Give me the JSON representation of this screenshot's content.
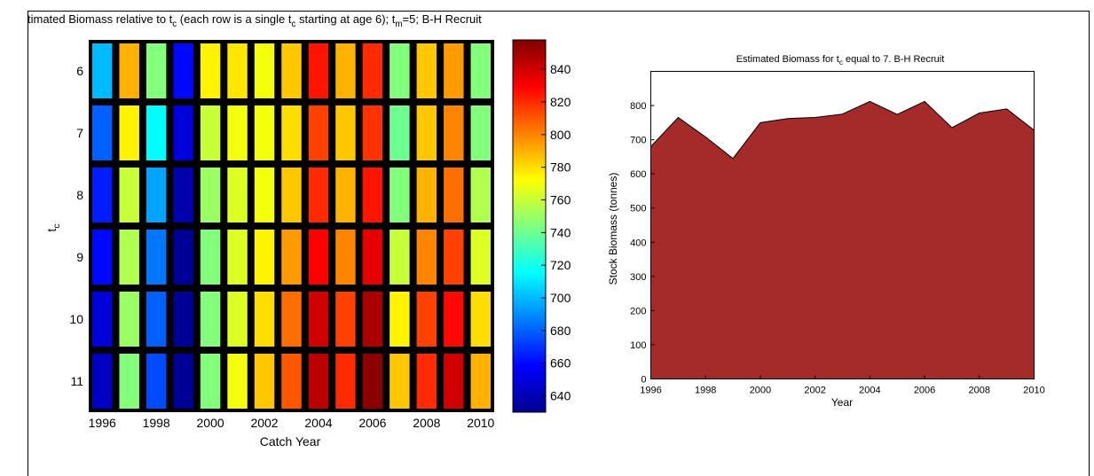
{
  "figure": {
    "title_parts": [
      {
        "t": "timated Biomass relative to t"
      },
      {
        "t": "c",
        "sub": true
      },
      {
        "t": " (each row is a single t"
      },
      {
        "t": "c",
        "sub": true
      },
      {
        "t": " starting at age 6); t"
      },
      {
        "t": "m",
        "sub": true
      },
      {
        "t": "=5; B-H Recruit"
      }
    ]
  },
  "chart_data": [
    {
      "type": "heatmap",
      "xlabel": "Catch Year",
      "ylabel_parts": [
        {
          "t": "t"
        },
        {
          "t": "c",
          "sub": true
        }
      ],
      "x": [
        1996,
        1997,
        1998,
        1999,
        2000,
        2001,
        2002,
        2003,
        2004,
        2005,
        2006,
        2007,
        2008,
        2009,
        2010
      ],
      "x_tick_labels": [
        "1996",
        "1998",
        "2000",
        "2002",
        "2004",
        "2006",
        "2008",
        "2010"
      ],
      "x_tick_values": [
        1996,
        1998,
        2000,
        2002,
        2004,
        2006,
        2008,
        2010
      ],
      "y": [
        6,
        7,
        8,
        9,
        10,
        11
      ],
      "y_tick_labels": [
        "6",
        "7",
        "8",
        "9",
        "10",
        "11"
      ],
      "values": [
        [
          700,
          790,
          745,
          660,
          775,
          778,
          770,
          785,
          825,
          790,
          820,
          745,
          785,
          795,
          745
        ],
        [
          680,
          775,
          715,
          650,
          760,
          770,
          770,
          780,
          815,
          785,
          818,
          740,
          785,
          800,
          745
        ],
        [
          665,
          760,
          695,
          640,
          750,
          765,
          770,
          785,
          820,
          790,
          825,
          745,
          790,
          805,
          755
        ],
        [
          660,
          755,
          685,
          635,
          745,
          765,
          775,
          795,
          830,
          800,
          835,
          760,
          800,
          815,
          765
        ],
        [
          650,
          750,
          680,
          635,
          745,
          765,
          780,
          805,
          840,
          815,
          848,
          775,
          815,
          828,
          780
        ],
        [
          645,
          745,
          675,
          635,
          745,
          770,
          785,
          810,
          845,
          820,
          855,
          785,
          820,
          840,
          790
        ]
      ],
      "colorbar": {
        "range": [
          630,
          858
        ],
        "ticks": [
          640,
          660,
          680,
          700,
          720,
          740,
          760,
          780,
          800,
          820,
          840
        ],
        "colormap": "jet"
      }
    },
    {
      "type": "area",
      "title_parts": [
        {
          "t": "Estimated Biomass for t"
        },
        {
          "t": "c",
          "sub": true
        },
        {
          "t": " equal to 7. B-H Recruit"
        }
      ],
      "xlabel": "Year",
      "ylabel": "Stock Biomass (tonnes)",
      "x": [
        1996,
        1997,
        1998,
        1999,
        2000,
        2001,
        2002,
        2003,
        2004,
        2005,
        2006,
        2007,
        2008,
        2009,
        2010
      ],
      "y": [
        680,
        765,
        708,
        645,
        750,
        762,
        765,
        775,
        812,
        774,
        812,
        735,
        778,
        790,
        728
      ],
      "xlim": [
        1996,
        2010
      ],
      "ylim": [
        0,
        900
      ],
      "x_ticks": [
        1996,
        1998,
        2000,
        2002,
        2004,
        2006,
        2008,
        2010
      ],
      "y_ticks": [
        0,
        100,
        200,
        300,
        400,
        500,
        600,
        700,
        800
      ],
      "fill_color": "#A52A2A"
    }
  ]
}
